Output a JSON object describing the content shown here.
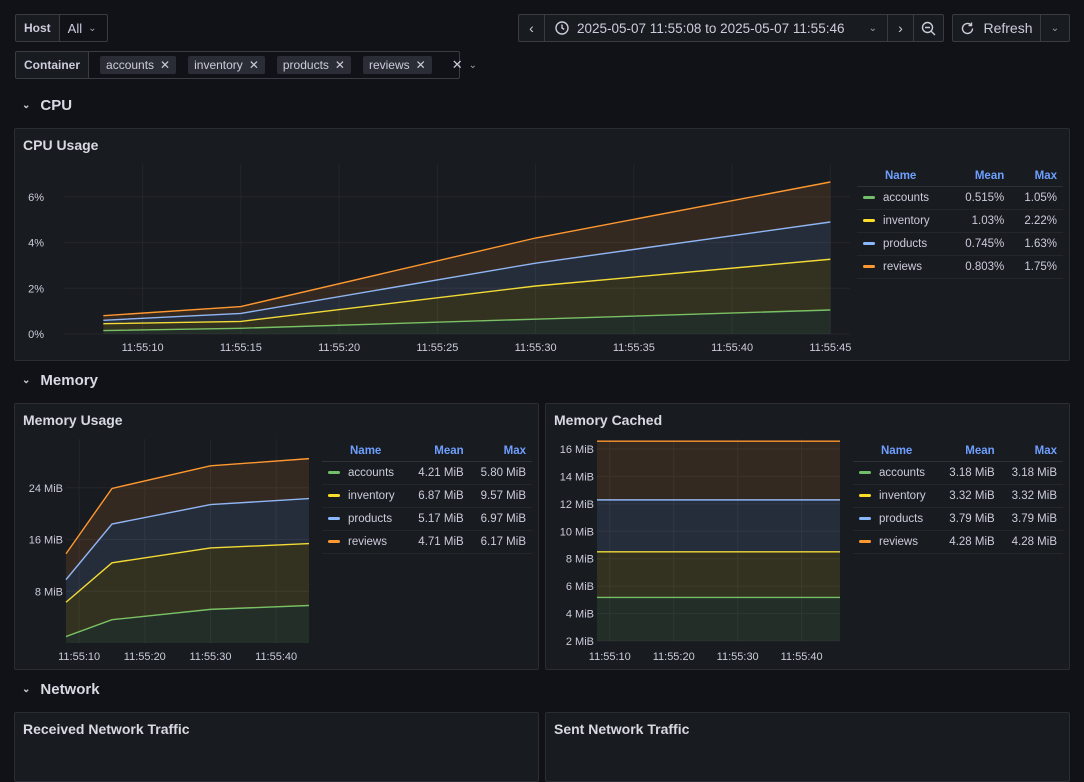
{
  "variables": {
    "host": {
      "label": "Host",
      "value": "All"
    },
    "container": {
      "label": "Container",
      "chips": [
        "accounts",
        "inventory",
        "products",
        "reviews"
      ]
    }
  },
  "toolbar": {
    "time_range": "2025-05-07 11:55:08 to 2025-05-07 11:55:46",
    "refresh_label": "Refresh"
  },
  "colors": {
    "accounts": "#73bf69",
    "inventory": "#fade2a",
    "products": "#8ab8ff",
    "reviews": "#ff9830",
    "accent": "#6e9fff"
  },
  "icons": [
    "chevron-left-icon",
    "clock-icon",
    "chevron-down-icon",
    "chevron-right-icon",
    "zoom-out-icon",
    "refresh-icon",
    "close-icon"
  ],
  "rows": {
    "cpu": "CPU",
    "memory": "Memory",
    "network": "Network"
  },
  "panels": {
    "cpu_usage": {
      "title": "CPU Usage",
      "legend": {
        "headers": [
          "Name",
          "Mean",
          "Max"
        ],
        "rows": [
          {
            "name": "accounts",
            "mean": "0.515%",
            "max": "1.05%"
          },
          {
            "name": "inventory",
            "mean": "1.03%",
            "max": "2.22%"
          },
          {
            "name": "products",
            "mean": "0.745%",
            "max": "1.63%"
          },
          {
            "name": "reviews",
            "mean": "0.803%",
            "max": "1.75%"
          }
        ]
      }
    },
    "memory_usage": {
      "title": "Memory Usage",
      "legend": {
        "headers": [
          "Name",
          "Mean",
          "Max"
        ],
        "rows": [
          {
            "name": "accounts",
            "mean": "4.21 MiB",
            "max": "5.80 MiB"
          },
          {
            "name": "inventory",
            "mean": "6.87 MiB",
            "max": "9.57 MiB"
          },
          {
            "name": "products",
            "mean": "5.17 MiB",
            "max": "6.97 MiB"
          },
          {
            "name": "reviews",
            "mean": "4.71 MiB",
            "max": "6.17 MiB"
          }
        ]
      }
    },
    "memory_cached": {
      "title": "Memory Cached",
      "legend": {
        "headers": [
          "Name",
          "Mean",
          "Max"
        ],
        "rows": [
          {
            "name": "accounts",
            "mean": "3.18 MiB",
            "max": "3.18 MiB"
          },
          {
            "name": "inventory",
            "mean": "3.32 MiB",
            "max": "3.32 MiB"
          },
          {
            "name": "products",
            "mean": "3.79 MiB",
            "max": "3.79 MiB"
          },
          {
            "name": "reviews",
            "mean": "4.28 MiB",
            "max": "4.28 MiB"
          }
        ]
      }
    },
    "received_network": {
      "title": "Received Network Traffic"
    },
    "sent_network": {
      "title": "Sent Network Traffic"
    }
  },
  "chart_data": [
    {
      "type": "area",
      "stacked": true,
      "title": "CPU Usage",
      "x": [
        "11:55:08",
        "11:55:15",
        "11:55:30",
        "11:55:45"
      ],
      "xticks": [
        "11:55:10",
        "11:55:15",
        "11:55:20",
        "11:55:25",
        "11:55:30",
        "11:55:35",
        "11:55:40",
        "11:55:45"
      ],
      "yticks": [
        "0%",
        "2%",
        "4%",
        "6%"
      ],
      "ylim": [
        0,
        7
      ],
      "series": [
        {
          "name": "accounts",
          "values": [
            0.15,
            0.25,
            0.65,
            1.05
          ]
        },
        {
          "name": "inventory",
          "values": [
            0.3,
            0.3,
            1.45,
            2.22
          ]
        },
        {
          "name": "products",
          "values": [
            0.15,
            0.35,
            1.0,
            1.63
          ]
        },
        {
          "name": "reviews",
          "values": [
            0.2,
            0.3,
            1.1,
            1.75
          ]
        }
      ]
    },
    {
      "type": "area",
      "stacked": true,
      "title": "Memory Usage",
      "x": [
        "11:55:08",
        "11:55:15",
        "11:55:30",
        "11:55:45"
      ],
      "xticks": [
        "11:55:10",
        "11:55:20",
        "11:55:30",
        "11:55:40"
      ],
      "yticks": [
        "8 MiB",
        "16 MiB",
        "24 MiB"
      ],
      "ylim": [
        0,
        30
      ],
      "series": [
        {
          "name": "accounts",
          "values": [
            1.0,
            3.6,
            5.2,
            5.8
          ]
        },
        {
          "name": "inventory",
          "values": [
            5.3,
            8.8,
            9.5,
            9.57
          ]
        },
        {
          "name": "products",
          "values": [
            3.5,
            6.0,
            6.7,
            6.97
          ]
        },
        {
          "name": "reviews",
          "values": [
            4.0,
            5.5,
            6.0,
            6.17
          ]
        }
      ]
    },
    {
      "type": "area",
      "stacked": true,
      "title": "Memory Cached",
      "x": [
        "11:55:08",
        "11:55:46"
      ],
      "xticks": [
        "11:55:10",
        "11:55:20",
        "11:55:30",
        "11:55:40"
      ],
      "yticks": [
        "2 MiB",
        "4 MiB",
        "6 MiB",
        "8 MiB",
        "10 MiB",
        "12 MiB",
        "14 MiB",
        "16 MiB"
      ],
      "ylim": [
        2,
        16
      ],
      "series": [
        {
          "name": "accounts",
          "values": [
            3.18,
            3.18
          ]
        },
        {
          "name": "inventory",
          "values": [
            3.32,
            3.32
          ]
        },
        {
          "name": "products",
          "values": [
            3.79,
            3.79
          ]
        },
        {
          "name": "reviews",
          "values": [
            4.28,
            4.28
          ]
        }
      ]
    }
  ]
}
